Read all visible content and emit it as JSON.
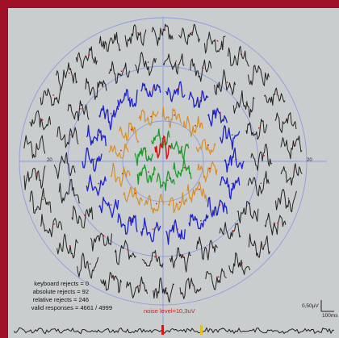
{
  "stats": {
    "keyboard_rejects": "keyboard rejects = 0",
    "absolute_rejects": "absolute rejects = 92",
    "relative_rejects": "relative rejects = 246",
    "valid_responses": "valid responses = 4661 / 4999"
  },
  "noise_level": "noise level=10,3uV",
  "scale": {
    "amplitude": "0,50µV",
    "time": "100ms"
  },
  "ring_labels": {
    "left": "20",
    "right": "20"
  },
  "colors": {
    "frame": "#a01026",
    "background": "#c9cdcd",
    "grid": "#8e9be0",
    "trace_outer": "#222222",
    "trace_ring3": "#1f22c8",
    "trace_ring2": "#d98a1c",
    "trace_ring1": "#1f9a2a",
    "trace_center": "#d01818",
    "noise_text": "#d21c1c"
  }
}
